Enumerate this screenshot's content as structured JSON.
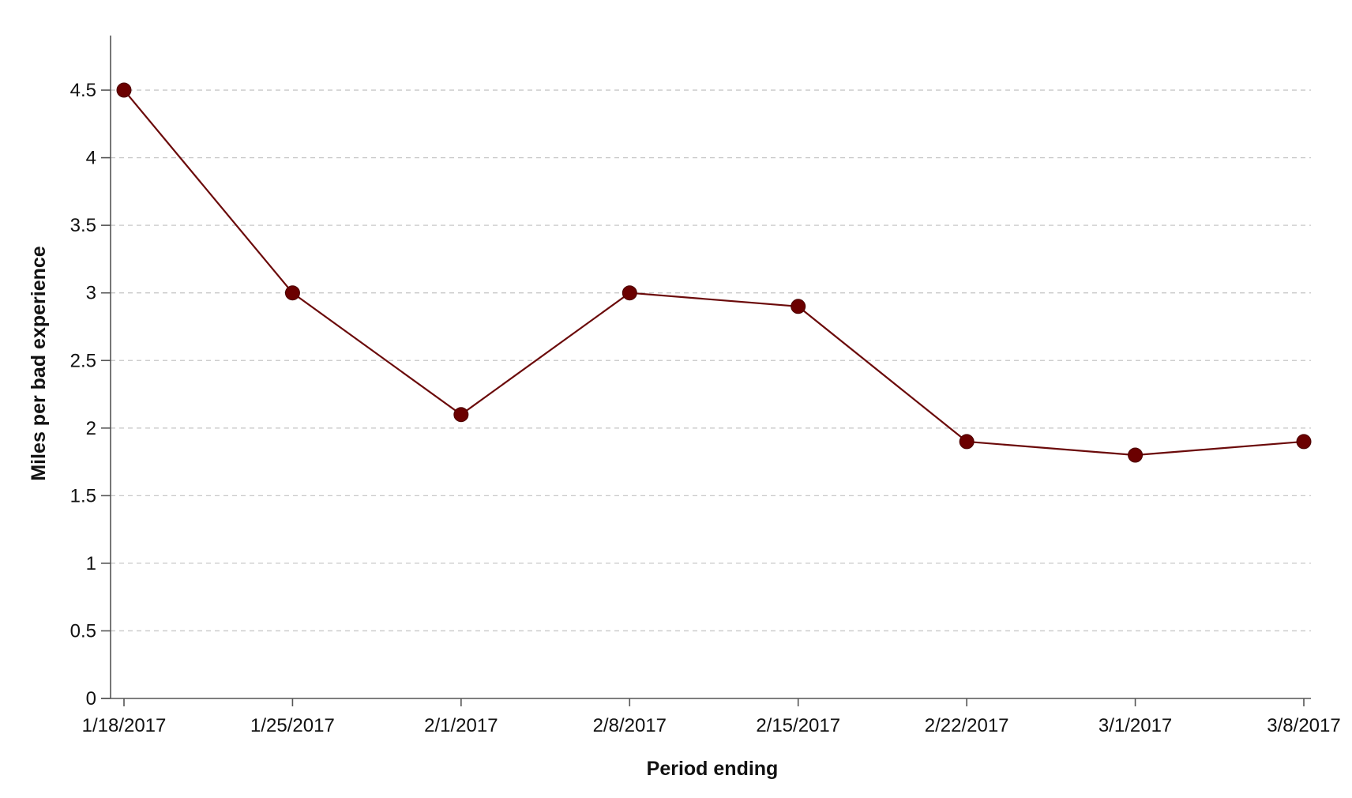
{
  "chart_data": {
    "type": "line",
    "title": "",
    "xlabel": "Period ending",
    "ylabel": "Miles per bad experience",
    "categories": [
      "1/18/2017",
      "1/25/2017",
      "2/1/2017",
      "2/8/2017",
      "2/15/2017",
      "2/22/2017",
      "3/1/2017",
      "3/8/2017"
    ],
    "series": [
      {
        "values": [
          4.5,
          3.0,
          2.1,
          3.0,
          2.9,
          1.9,
          1.8,
          1.9
        ]
      }
    ],
    "yticks": [
      "0",
      "0.5",
      "1",
      "1.5",
      "2",
      "2.5",
      "3",
      "3.5",
      "4",
      "4.5"
    ],
    "ylim": [
      0,
      4.9
    ],
    "grid": true,
    "legend": "none",
    "colors": {
      "line": "#6b0a0a",
      "marker": "#6b0000",
      "grid": "#c8c8c8",
      "axis": "#555555"
    }
  }
}
